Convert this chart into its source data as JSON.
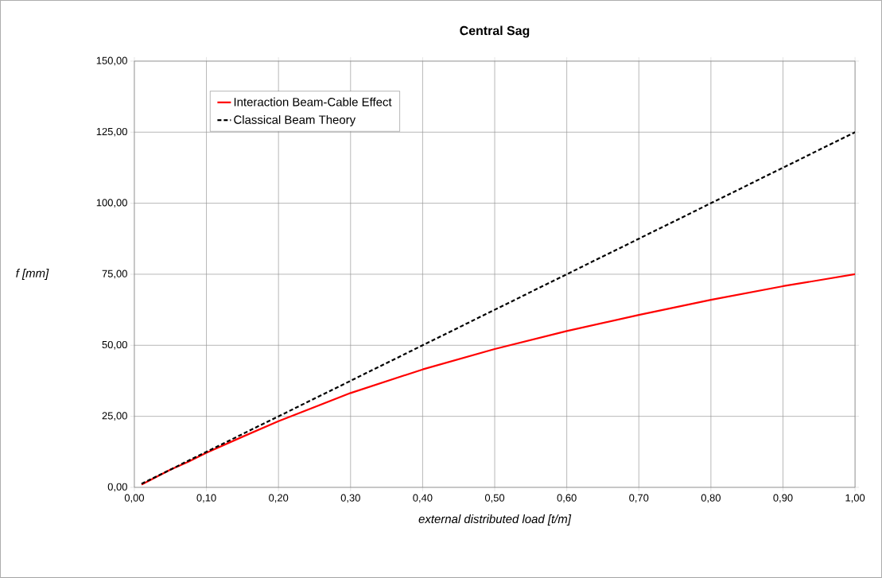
{
  "chart_data": {
    "type": "line",
    "title": "Central Sag",
    "xlabel": "external distributed load [t/m]",
    "ylabel": "f [mm]",
    "x": [
      0.01,
      0.05,
      0.075,
      0.1,
      0.15,
      0.2,
      0.3,
      0.4,
      0.5,
      0.6,
      0.7,
      0.8,
      0.9,
      1.0
    ],
    "series": [
      {
        "name": "Interaction Beam-Cable Effect",
        "color": "#ff0000",
        "line_style": "solid",
        "values": [
          1.0,
          6.2,
          9.0,
          12.2,
          17.8,
          23.3,
          33.2,
          41.5,
          48.7,
          55.0,
          60.7,
          66.0,
          70.8,
          75.0
        ]
      },
      {
        "name": "Classical Beam Theory",
        "color": "#000000",
        "line_style": "dashed",
        "values": [
          1.25,
          6.25,
          9.4,
          12.5,
          18.75,
          25.0,
          37.5,
          50.0,
          62.5,
          75.0,
          87.5,
          100.0,
          112.5,
          125.0
        ]
      }
    ],
    "xlim": [
      0,
      1
    ],
    "ylim": [
      0,
      150
    ],
    "xticks": [
      {
        "value": 0,
        "label": "0,00"
      },
      {
        "value": 0.1,
        "label": "0,10"
      },
      {
        "value": 0.2,
        "label": "0,20"
      },
      {
        "value": 0.3,
        "label": "0,30"
      },
      {
        "value": 0.4,
        "label": "0,40"
      },
      {
        "value": 0.5,
        "label": "0,50"
      },
      {
        "value": 0.6,
        "label": "0,60"
      },
      {
        "value": 0.7,
        "label": "0,70"
      },
      {
        "value": 0.8,
        "label": "0,80"
      },
      {
        "value": 0.9,
        "label": "0,90"
      },
      {
        "value": 1.0,
        "label": "1,00"
      }
    ],
    "yticks": [
      {
        "value": 0,
        "label": "0,00"
      },
      {
        "value": 25,
        "label": "25,00"
      },
      {
        "value": 50,
        "label": "50,00"
      },
      {
        "value": 75,
        "label": "75,00"
      },
      {
        "value": 100,
        "label": "100,00"
      },
      {
        "value": 125,
        "label": "125,00"
      },
      {
        "value": 150,
        "label": "150,00"
      }
    ],
    "grid": true,
    "legend": "top left",
    "marker": "none"
  }
}
